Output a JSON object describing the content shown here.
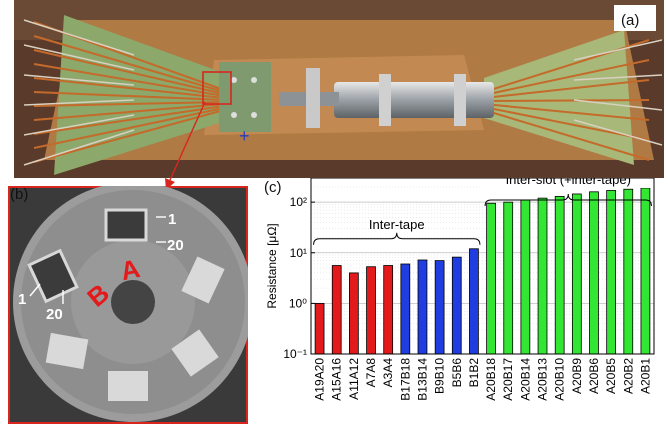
{
  "panel_a": {
    "label": "(a)",
    "polarity_mark": "+"
  },
  "panel_b": {
    "label": "(b)",
    "annotations": [
      "1",
      "20",
      "1",
      "20"
    ],
    "groups": [
      "A",
      "B"
    ]
  },
  "panel_c": {
    "label": "(c)"
  },
  "colors": {
    "red": "#e31a1c",
    "blue": "#1f3de0",
    "green": "#33e633",
    "arrow": "#d7261e"
  },
  "chart_data": {
    "type": "bar",
    "ylabel": "Resistance [μΩ]",
    "yscale": "log",
    "ylim": [
      0.1,
      300
    ],
    "yticks": [
      {
        "v": 0.1,
        "label": "10⁻¹"
      },
      {
        "v": 1,
        "label": "10⁰"
      },
      {
        "v": 10,
        "label": "10¹"
      },
      {
        "v": 100,
        "label": "10²"
      }
    ],
    "grid": true,
    "categories": [
      "A19A20",
      "A15A16",
      "A11A12",
      "A7A8",
      "A3A4",
      "B17B18",
      "B13B14",
      "B9B10",
      "B5B6",
      "B1B2",
      "A20B18",
      "A20B17",
      "A20B14",
      "A20B13",
      "A20B10",
      "A20B9",
      "A20B6",
      "A20B5",
      "A20B2",
      "A20B1"
    ],
    "values": [
      1.0,
      5.6,
      4.0,
      5.3,
      5.6,
      6.0,
      7.2,
      7.0,
      8.2,
      12.0,
      95,
      100,
      110,
      120,
      130,
      145,
      160,
      170,
      180,
      190
    ],
    "bar_colors": [
      "red",
      "red",
      "red",
      "red",
      "red",
      "blue",
      "blue",
      "blue",
      "blue",
      "blue",
      "green",
      "green",
      "green",
      "green",
      "green",
      "green",
      "green",
      "green",
      "green",
      "green"
    ],
    "annotations": [
      {
        "text": "Inter-tape",
        "from": 0,
        "to": 9
      },
      {
        "text": "Inter-slot (+inter-tape)",
        "from": 10,
        "to": 19
      }
    ]
  }
}
